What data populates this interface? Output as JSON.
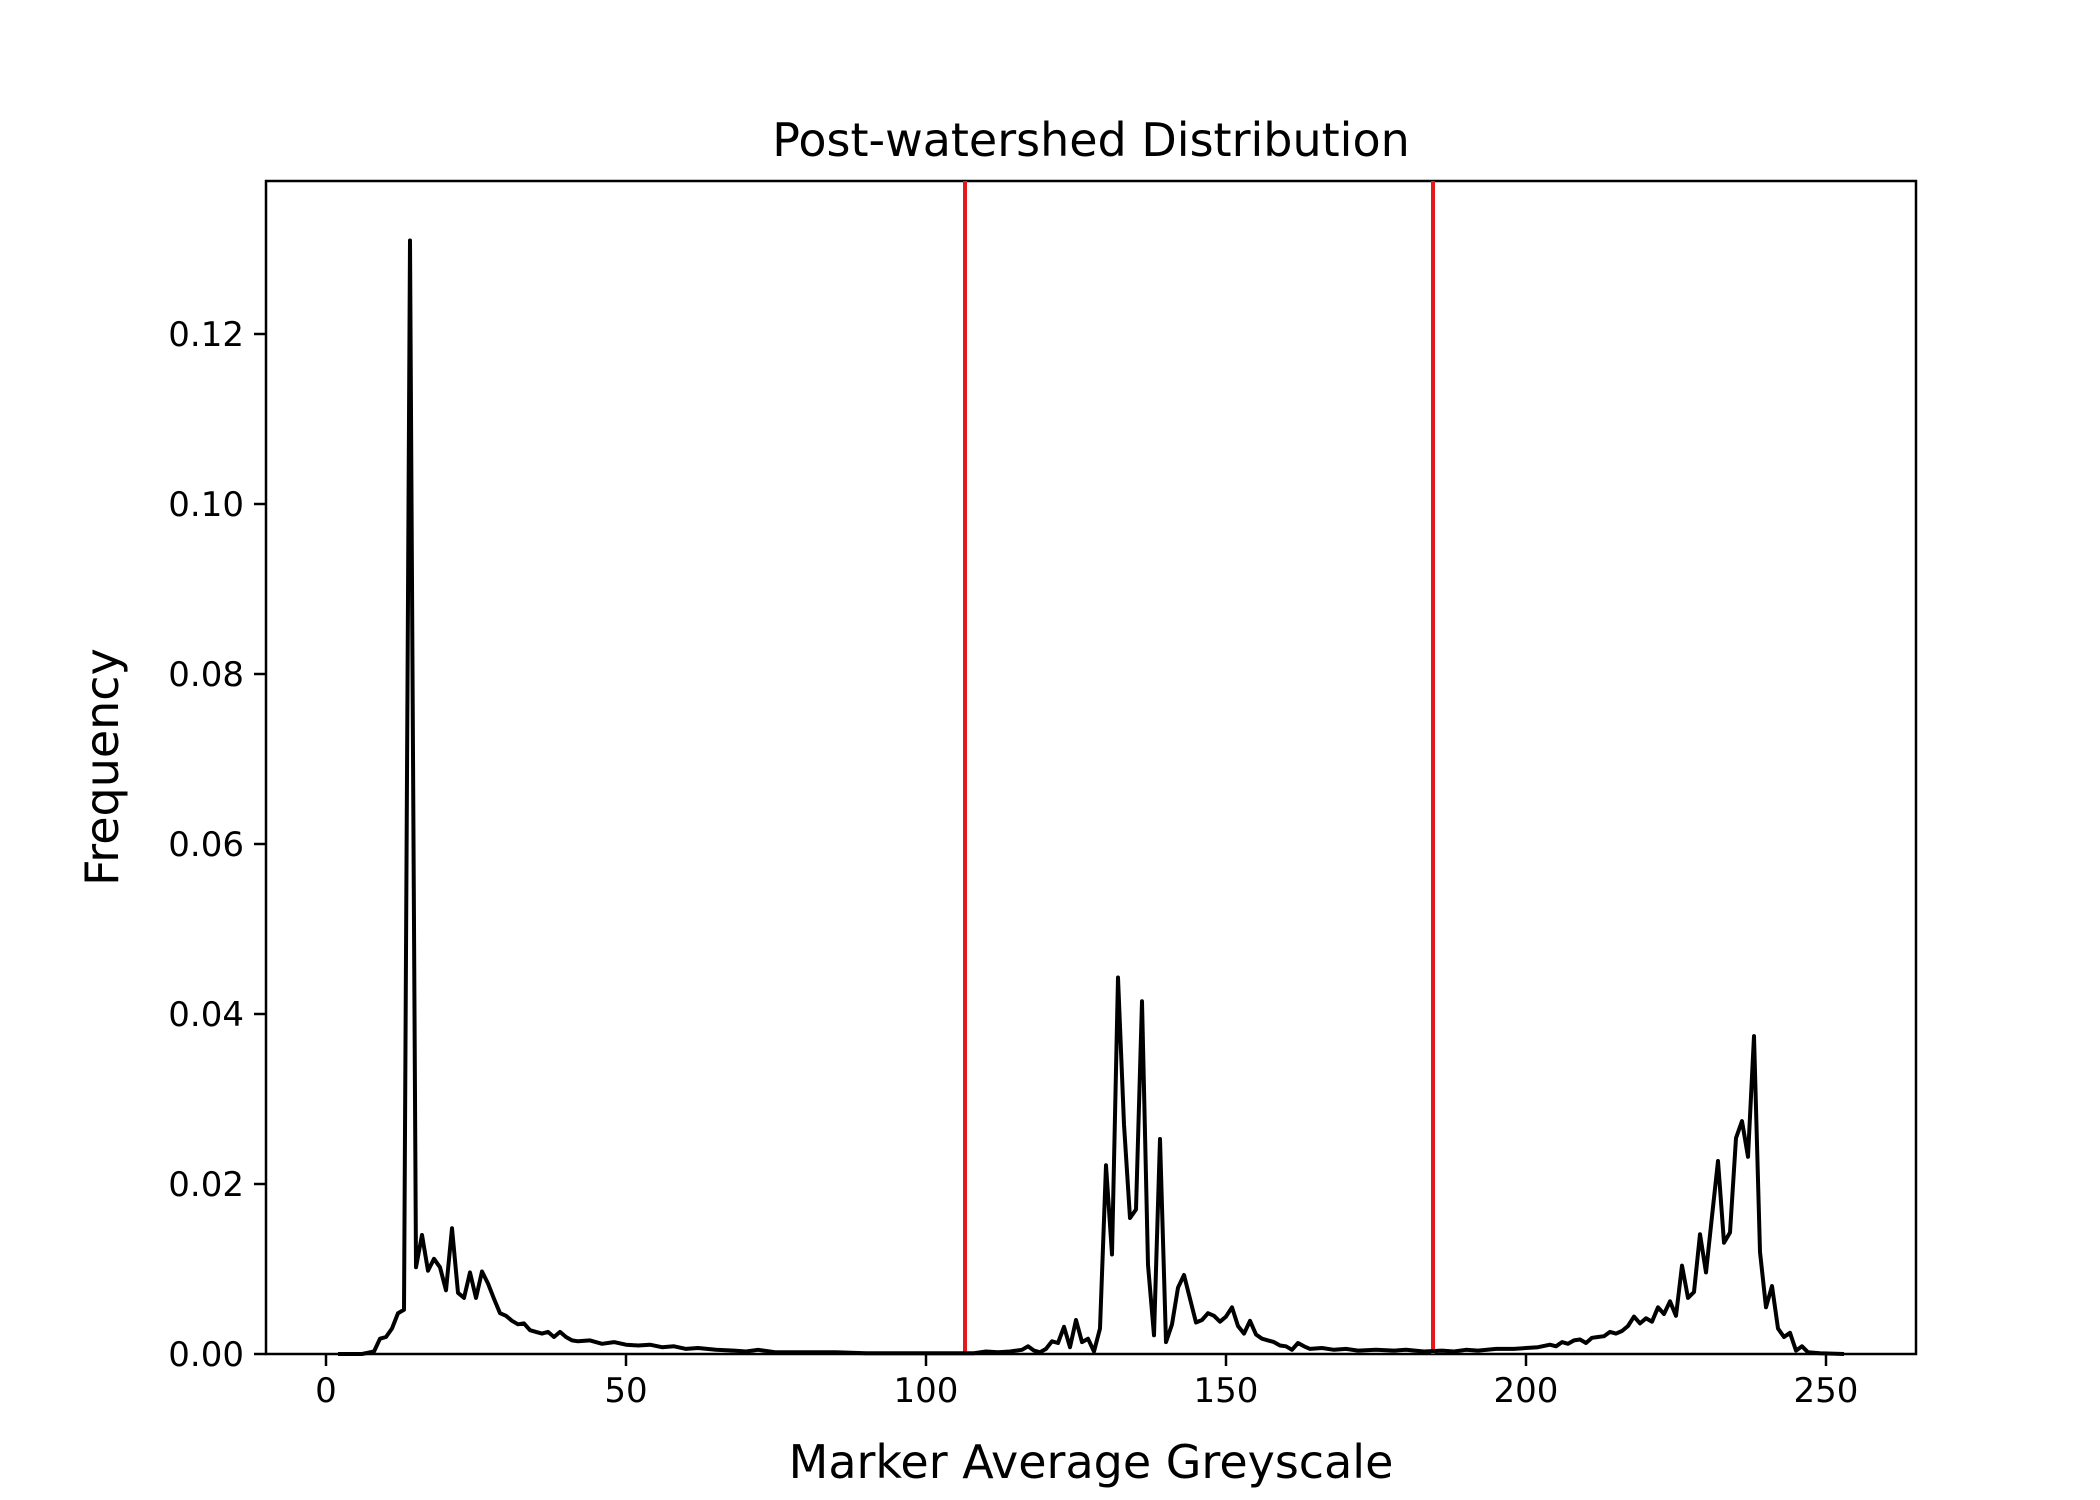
{
  "chart_data": {
    "type": "line",
    "title": "Post-watershed Distribution",
    "xlabel": "Marker Average Greyscale",
    "ylabel": "Frequency",
    "xlim": [
      -10,
      265
    ],
    "ylim": [
      0,
      0.138
    ],
    "xticks": [
      0,
      50,
      100,
      150,
      200,
      250
    ],
    "yticks": [
      0.0,
      0.02,
      0.04,
      0.06,
      0.08,
      0.1,
      0.12
    ],
    "xtick_labels": [
      "0",
      "50",
      "100",
      "150",
      "200",
      "250"
    ],
    "ytick_labels": [
      "0.00",
      "0.02",
      "0.04",
      "0.06",
      "0.08",
      "0.10",
      "0.12"
    ],
    "grid": false,
    "series": [
      {
        "color": "#000000",
        "points": [
          [
            2,
            0.0
          ],
          [
            6,
            0.0
          ],
          [
            8,
            0.0003
          ],
          [
            9,
            0.0018
          ],
          [
            10,
            0.002
          ],
          [
            11,
            0.003
          ],
          [
            12,
            0.0048
          ],
          [
            13,
            0.0052
          ],
          [
            14,
            0.131
          ],
          [
            15,
            0.0102
          ],
          [
            16,
            0.014
          ],
          [
            17,
            0.0098
          ],
          [
            18,
            0.0112
          ],
          [
            19,
            0.0102
          ],
          [
            20,
            0.0075
          ],
          [
            21,
            0.0148
          ],
          [
            22,
            0.0072
          ],
          [
            23,
            0.0066
          ],
          [
            24,
            0.0096
          ],
          [
            25,
            0.0066
          ],
          [
            26,
            0.0097
          ],
          [
            27,
            0.0083
          ],
          [
            28,
            0.0065
          ],
          [
            29,
            0.0048
          ],
          [
            30,
            0.0045
          ],
          [
            31,
            0.0039
          ],
          [
            32,
            0.0035
          ],
          [
            33,
            0.0036
          ],
          [
            34,
            0.0028
          ],
          [
            35,
            0.0026
          ],
          [
            36,
            0.0024
          ],
          [
            37,
            0.0026
          ],
          [
            38,
            0.002
          ],
          [
            39,
            0.0026
          ],
          [
            40,
            0.002
          ],
          [
            41,
            0.0016
          ],
          [
            42,
            0.0015
          ],
          [
            44,
            0.0016
          ],
          [
            46,
            0.0012
          ],
          [
            48,
            0.0014
          ],
          [
            50,
            0.0011
          ],
          [
            52,
            0.001
          ],
          [
            54,
            0.0011
          ],
          [
            56,
            0.0008
          ],
          [
            58,
            0.0009
          ],
          [
            60,
            0.0006
          ],
          [
            62,
            0.0007
          ],
          [
            65,
            0.0005
          ],
          [
            68,
            0.0004
          ],
          [
            70,
            0.0003
          ],
          [
            72,
            0.0005
          ],
          [
            75,
            0.0002
          ],
          [
            80,
            0.0002
          ],
          [
            85,
            0.0002
          ],
          [
            90,
            0.0001
          ],
          [
            95,
            0.0001
          ],
          [
            100,
            0.0001
          ],
          [
            105,
            0.0001
          ],
          [
            108,
            0.0001
          ],
          [
            110,
            0.0003
          ],
          [
            112,
            0.0002
          ],
          [
            114,
            0.0003
          ],
          [
            116,
            0.0005
          ],
          [
            117,
            0.0009
          ],
          [
            118,
            0.0004
          ],
          [
            119,
            0.0002
          ],
          [
            120,
            0.0006
          ],
          [
            121,
            0.0015
          ],
          [
            122,
            0.0013
          ],
          [
            123,
            0.0032
          ],
          [
            124,
            0.0008
          ],
          [
            125,
            0.004
          ],
          [
            126,
            0.0014
          ],
          [
            127,
            0.0018
          ],
          [
            128,
            0.0003
          ],
          [
            129,
            0.003
          ],
          [
            130,
            0.0222
          ],
          [
            131,
            0.0117
          ],
          [
            132,
            0.0443
          ],
          [
            133,
            0.027
          ],
          [
            134,
            0.016
          ],
          [
            135,
            0.017
          ],
          [
            136,
            0.0415
          ],
          [
            137,
            0.0105
          ],
          [
            138,
            0.0022
          ],
          [
            139,
            0.0253
          ],
          [
            140,
            0.0014
          ],
          [
            141,
            0.0035
          ],
          [
            142,
            0.0078
          ],
          [
            143,
            0.0093
          ],
          [
            144,
            0.0065
          ],
          [
            145,
            0.0037
          ],
          [
            146,
            0.004
          ],
          [
            147,
            0.0048
          ],
          [
            148,
            0.0045
          ],
          [
            149,
            0.0038
          ],
          [
            150,
            0.0044
          ],
          [
            151,
            0.0055
          ],
          [
            152,
            0.0033
          ],
          [
            153,
            0.0024
          ],
          [
            154,
            0.0039
          ],
          [
            155,
            0.0023
          ],
          [
            156,
            0.0018
          ],
          [
            157,
            0.0016
          ],
          [
            158,
            0.0014
          ],
          [
            159,
            0.001
          ],
          [
            160,
            0.0009
          ],
          [
            161,
            0.0005
          ],
          [
            162,
            0.0013
          ],
          [
            163,
            0.0009
          ],
          [
            164,
            0.0006
          ],
          [
            166,
            0.0007
          ],
          [
            168,
            0.0005
          ],
          [
            170,
            0.0006
          ],
          [
            172,
            0.0004
          ],
          [
            175,
            0.0005
          ],
          [
            178,
            0.0004
          ],
          [
            180,
            0.0005
          ],
          [
            183,
            0.0003
          ],
          [
            186,
            0.0004
          ],
          [
            188,
            0.0003
          ],
          [
            190,
            0.0005
          ],
          [
            192,
            0.0004
          ],
          [
            195,
            0.0006
          ],
          [
            198,
            0.0006
          ],
          [
            200,
            0.0007
          ],
          [
            202,
            0.0008
          ],
          [
            204,
            0.0011
          ],
          [
            205,
            0.0009
          ],
          [
            206,
            0.0014
          ],
          [
            207,
            0.0012
          ],
          [
            208,
            0.0016
          ],
          [
            209,
            0.0017
          ],
          [
            210,
            0.0013
          ],
          [
            211,
            0.0019
          ],
          [
            212,
            0.002
          ],
          [
            213,
            0.0021
          ],
          [
            214,
            0.0026
          ],
          [
            215,
            0.0024
          ],
          [
            216,
            0.0027
          ],
          [
            217,
            0.0033
          ],
          [
            218,
            0.0044
          ],
          [
            219,
            0.0036
          ],
          [
            220,
            0.0042
          ],
          [
            221,
            0.0038
          ],
          [
            222,
            0.0055
          ],
          [
            223,
            0.0047
          ],
          [
            224,
            0.0062
          ],
          [
            225,
            0.0045
          ],
          [
            226,
            0.0104
          ],
          [
            227,
            0.0066
          ],
          [
            228,
            0.0073
          ],
          [
            229,
            0.0141
          ],
          [
            230,
            0.0096
          ],
          [
            231,
            0.0162
          ],
          [
            232,
            0.0227
          ],
          [
            233,
            0.0131
          ],
          [
            234,
            0.0143
          ],
          [
            235,
            0.0254
          ],
          [
            236,
            0.0274
          ],
          [
            237,
            0.0232
          ],
          [
            238,
            0.0374
          ],
          [
            239,
            0.012
          ],
          [
            240,
            0.0055
          ],
          [
            241,
            0.008
          ],
          [
            242,
            0.003
          ],
          [
            243,
            0.002
          ],
          [
            244,
            0.0025
          ],
          [
            245,
            0.0004
          ],
          [
            246,
            0.0009
          ],
          [
            247,
            0.0002
          ],
          [
            249,
            0.0001
          ],
          [
            253,
            0.0
          ]
        ]
      }
    ],
    "vlines": [
      {
        "x": 106.5,
        "color": "#e31a1c"
      },
      {
        "x": 184.5,
        "color": "#e31a1c"
      }
    ]
  }
}
